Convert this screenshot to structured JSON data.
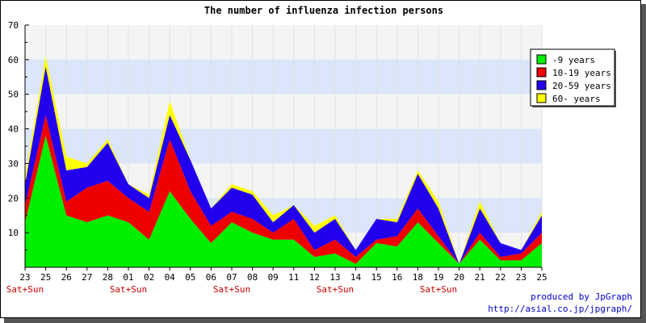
{
  "chart_data": {
    "type": "area",
    "stacked": true,
    "title": "The number of influenza infection persons",
    "xlabel": "",
    "ylabel": "",
    "ylim": [
      0,
      70
    ],
    "yticks": [
      10,
      20,
      30,
      40,
      50,
      60,
      70
    ],
    "grid": "horizontal bands",
    "legend_position": "top-right",
    "categories": [
      "23",
      "25",
      "26",
      "27",
      "28",
      "01",
      "02",
      "04",
      "05",
      "06",
      "07",
      "08",
      "09",
      "11",
      "12",
      "13",
      "14",
      "15",
      "16",
      "18",
      "19",
      "20",
      "21",
      "22",
      "23",
      "25"
    ],
    "weekend_labels": [
      {
        "index": 0,
        "label": "Sat+Sun"
      },
      {
        "index": 5,
        "label": "Sat+Sun"
      },
      {
        "index": 10,
        "label": "Sat+Sun"
      },
      {
        "index": 15,
        "label": "Sat+Sun"
      },
      {
        "index": 20,
        "label": "Sat+Sun"
      }
    ],
    "series": [
      {
        "name": "-9 years",
        "color": "#00ee00",
        "values": [
          13,
          38,
          15,
          13,
          15,
          13,
          8,
          22,
          14,
          7,
          13,
          10,
          8,
          8,
          3,
          4,
          1,
          7,
          6,
          13,
          7,
          1,
          8,
          2,
          2,
          7
        ]
      },
      {
        "name": "10-19 years",
        "color": "#ee0000",
        "values": [
          5,
          6,
          4,
          10,
          10,
          7,
          8,
          15,
          8,
          5,
          3,
          4,
          2,
          6,
          2,
          4,
          2,
          1,
          3,
          4,
          2,
          0,
          2,
          1,
          2,
          3
        ]
      },
      {
        "name": "20-59 years",
        "color": "#2200ee",
        "values": [
          6,
          14,
          9,
          6,
          11,
          4,
          4,
          7,
          9,
          5,
          7,
          7,
          3,
          4,
          5,
          6,
          2,
          6,
          4,
          10,
          8,
          0,
          7,
          4,
          1,
          5
        ]
      },
      {
        "name": "60- years",
        "color": "#ffff00",
        "values": [
          2,
          3,
          4,
          1,
          1,
          0,
          1,
          4,
          0,
          0,
          1,
          1,
          2,
          0,
          2,
          1,
          0,
          0,
          1,
          1,
          2,
          0,
          2,
          0,
          0,
          1
        ]
      }
    ],
    "colors": {
      "plot_bg": "#f4f4f4",
      "band": "#dce6fa",
      "weekend_label": "#cc0000",
      "credit": "#0000cc"
    }
  },
  "credits": {
    "line1": "produced by JpGraph",
    "line2": "http://asial.co.jp/jpgraph/"
  }
}
